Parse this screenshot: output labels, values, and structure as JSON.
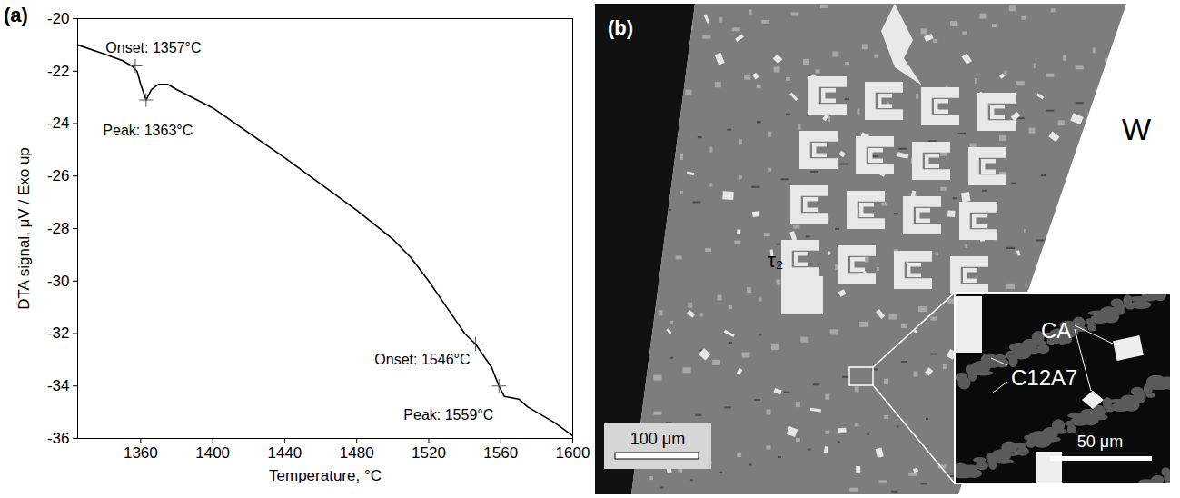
{
  "chart_data": {
    "type": "line",
    "panel_label": "(a)",
    "x_label": "Temperature, °C",
    "y_label": "DTA signal, μV / Exo up",
    "x": [
      1325,
      1340,
      1350,
      1355,
      1358,
      1360,
      1363,
      1366,
      1370,
      1375,
      1380,
      1400,
      1440,
      1480,
      1500,
      1510,
      1520,
      1530,
      1540,
      1546,
      1555,
      1559,
      1562,
      1570,
      1575,
      1590,
      1600
    ],
    "values": [
      -21.0,
      -21.35,
      -21.6,
      -21.8,
      -22.0,
      -22.5,
      -23.1,
      -22.7,
      -22.5,
      -22.5,
      -22.7,
      -23.4,
      -25.3,
      -27.3,
      -28.4,
      -29.1,
      -30.0,
      -31.0,
      -32.0,
      -32.4,
      -33.3,
      -34.0,
      -34.4,
      -34.5,
      -34.8,
      -35.4,
      -35.9
    ],
    "color": "#000000",
    "xlim": [
      1325,
      1600
    ],
    "xticks": [
      1360,
      1400,
      1440,
      1480,
      1520,
      1560,
      1600
    ],
    "ylim": [
      -36,
      -20
    ],
    "yticks": [
      -36,
      -34,
      -32,
      -30,
      -28,
      -26,
      -24,
      -22,
      -20
    ],
    "grid": false,
    "annotations": [
      {
        "text": "Onset: 1357°C",
        "x": 1357,
        "y": -21.8
      },
      {
        "text": "Peak: 1363°C",
        "x": 1363,
        "y": -23.1
      },
      {
        "text": "Onset: 1546°C",
        "x": 1546,
        "y": -32.4
      },
      {
        "text": "Peak: 1559°C",
        "x": 1559,
        "y": -34.0
      }
    ]
  },
  "micrograph": {
    "panel_label": "(b)",
    "phase_label": "τ₂",
    "region_label": "W",
    "scale_bar": "100 μm",
    "inset": {
      "labels": [
        "CA",
        "C12A7"
      ],
      "scale_bar": "50 μm"
    }
  }
}
